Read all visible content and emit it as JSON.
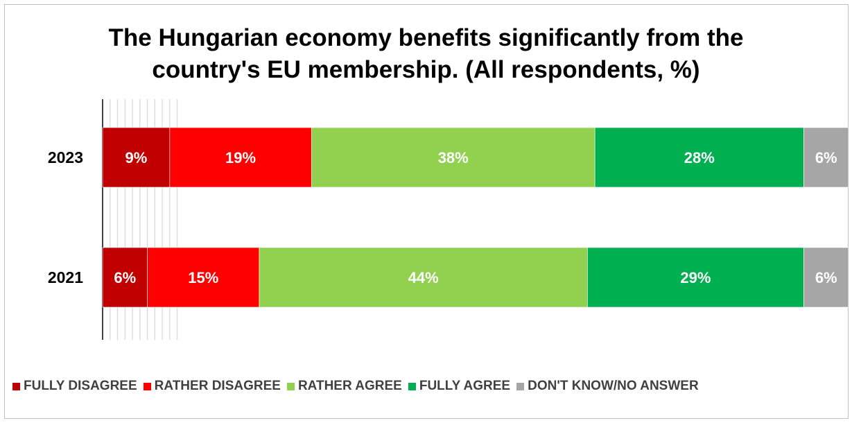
{
  "chart_data": {
    "type": "bar",
    "orientation": "horizontal",
    "stacked": true,
    "title": "The Hungarian economy benefits significantly from the country's EU membership. (All respondents, %)",
    "title_lines": [
      "The Hungarian economy benefits significantly from the",
      "country's EU membership. (All respondents, %)"
    ],
    "categories": [
      "2023",
      "2021"
    ],
    "series": [
      {
        "name": "FULLY DISAGREE",
        "values": [
          9,
          6
        ],
        "labels": [
          "9%",
          "6%"
        ],
        "color": "#c00000"
      },
      {
        "name": "RATHER DISAGREE",
        "values": [
          19,
          15
        ],
        "labels": [
          "19%",
          "15%"
        ],
        "color": "#ff0000"
      },
      {
        "name": "RATHER AGREE",
        "values": [
          38,
          44
        ],
        "labels": [
          "38%",
          "44%"
        ],
        "color": "#92d050"
      },
      {
        "name": "FULLY AGREE",
        "values": [
          28,
          29
        ],
        "labels": [
          "28%",
          "29%"
        ],
        "color": "#00b050"
      },
      {
        "name": "DON'T KNOW/NO ANSWER",
        "values": [
          6,
          6
        ],
        "labels": [
          "6%",
          "6%"
        ],
        "color": "#a6a6a6"
      }
    ],
    "xlim": [
      0,
      100
    ],
    "grid": true,
    "legend_position": "bottom"
  }
}
